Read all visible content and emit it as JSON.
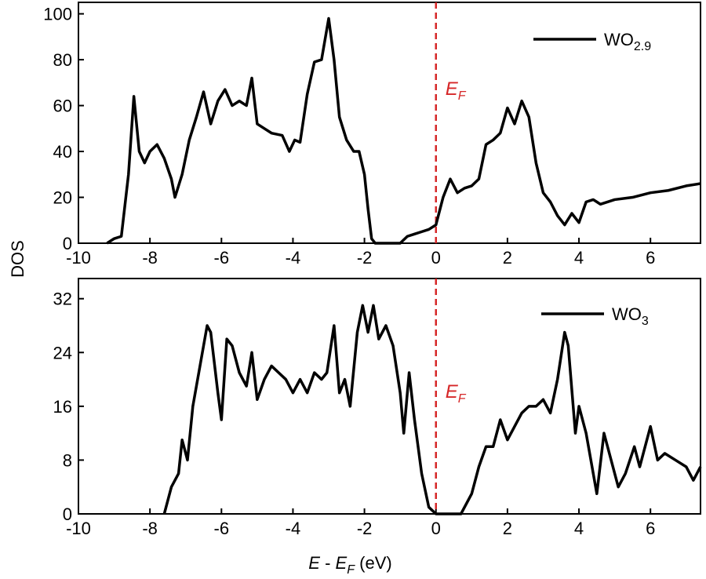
{
  "chart_data": [
    {
      "type": "line",
      "ylabel": "DOS",
      "x": [
        -9.2,
        -9.0,
        -8.8,
        -8.6,
        -8.45,
        -8.3,
        -8.15,
        -8.0,
        -7.8,
        -7.6,
        -7.4,
        -7.3,
        -7.1,
        -6.9,
        -6.7,
        -6.5,
        -6.3,
        -6.1,
        -5.9,
        -5.7,
        -5.5,
        -5.3,
        -5.15,
        -5.0,
        -4.8,
        -4.6,
        -4.3,
        -4.1,
        -3.95,
        -3.8,
        -3.6,
        -3.4,
        -3.2,
        -3.0,
        -2.85,
        -2.7,
        -2.5,
        -2.3,
        -2.15,
        -2.0,
        -1.9,
        -1.8,
        -1.7,
        -1.0,
        -0.8,
        -0.6,
        -0.4,
        -0.2,
        0.0,
        0.2,
        0.4,
        0.6,
        0.8,
        1.0,
        1.2,
        1.4,
        1.6,
        1.8,
        2.0,
        2.2,
        2.4,
        2.6,
        2.8,
        3.0,
        3.2,
        3.4,
        3.6,
        3.8,
        4.0,
        4.2,
        4.4,
        4.6,
        5.0,
        5.5,
        6.0,
        6.5,
        7.0,
        7.4
      ],
      "series": [
        {
          "name": "WO2.9",
          "color": "#000000",
          "values": [
            0,
            2,
            3,
            30,
            64,
            40,
            35,
            40,
            43,
            37,
            28,
            20,
            30,
            45,
            55,
            66,
            52,
            62,
            67,
            60,
            62,
            60,
            72,
            52,
            50,
            48,
            47,
            40,
            45,
            44,
            65,
            79,
            80,
            98,
            80,
            55,
            45,
            40,
            40,
            30,
            15,
            2,
            0,
            0,
            3,
            4,
            5,
            6,
            8,
            20,
            28,
            22,
            24,
            25,
            28,
            43,
            45,
            48,
            59,
            52,
            62,
            55,
            35,
            22,
            18,
            12,
            8,
            13,
            9,
            18,
            19,
            17,
            19,
            20,
            22,
            23,
            25,
            26
          ]
        }
      ],
      "xlim": [
        -10,
        7.4
      ],
      "ylim": [
        0,
        105
      ],
      "xticks": [
        -10,
        -8,
        -6,
        -4,
        -2,
        0,
        2,
        4,
        6
      ],
      "yticks": [
        0,
        20,
        40,
        60,
        80,
        100
      ],
      "reference_line": {
        "x": 0,
        "label": "EF",
        "color": "#d62728"
      }
    },
    {
      "type": "line",
      "xlabel": "E - EF (eV)",
      "x": [
        -7.6,
        -7.4,
        -7.2,
        -7.1,
        -6.95,
        -6.8,
        -6.6,
        -6.4,
        -6.3,
        -6.1,
        -6.0,
        -5.85,
        -5.7,
        -5.5,
        -5.3,
        -5.15,
        -5.0,
        -4.8,
        -4.6,
        -4.4,
        -4.2,
        -4.0,
        -3.8,
        -3.6,
        -3.4,
        -3.2,
        -3.05,
        -2.85,
        -2.7,
        -2.55,
        -2.4,
        -2.2,
        -2.05,
        -1.9,
        -1.75,
        -1.6,
        -1.4,
        -1.2,
        -1.0,
        -0.9,
        -0.75,
        -0.6,
        -0.4,
        -0.2,
        0.0,
        0.7,
        1.0,
        1.2,
        1.4,
        1.6,
        1.8,
        2.0,
        2.2,
        2.4,
        2.6,
        2.8,
        3.0,
        3.2,
        3.4,
        3.6,
        3.7,
        3.9,
        4.0,
        4.2,
        4.5,
        4.7,
        4.9,
        5.1,
        5.3,
        5.55,
        5.7,
        6.0,
        6.2,
        6.4,
        6.7,
        7.0,
        7.2,
        7.4
      ],
      "series": [
        {
          "name": "WO3",
          "color": "#000000",
          "values": [
            0,
            4,
            6,
            11,
            8,
            16,
            22,
            28,
            27,
            18,
            14,
            26,
            25,
            21,
            19,
            24,
            17,
            20,
            22,
            21,
            20,
            18,
            20,
            18,
            21,
            20,
            21,
            28,
            18,
            20,
            16,
            27,
            31,
            27,
            31,
            26,
            28,
            25,
            18,
            12,
            21,
            14,
            6,
            1,
            0,
            0,
            3,
            7,
            10,
            10,
            14,
            11,
            13,
            15,
            16,
            16,
            17,
            15,
            20,
            27,
            25,
            12,
            16,
            12,
            3,
            12,
            8,
            4,
            6,
            10,
            7,
            13,
            8,
            9,
            8,
            7,
            5,
            7
          ]
        }
      ],
      "xlim": [
        -10,
        7.4
      ],
      "ylim": [
        0,
        35
      ],
      "xticks": [
        -10,
        -8,
        -6,
        -4,
        -2,
        0,
        2,
        4,
        6
      ],
      "yticks": [
        0,
        8,
        16,
        24,
        32
      ],
      "reference_line": {
        "x": 0,
        "label": "EF",
        "color": "#d62728"
      }
    }
  ]
}
